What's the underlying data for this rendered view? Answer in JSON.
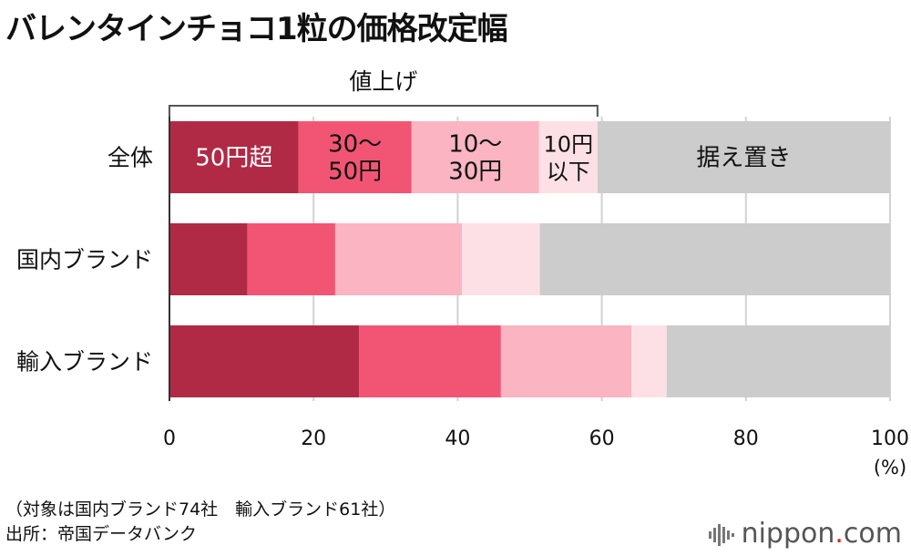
{
  "title": "バレンタインチョコ1粒の価格改定幅",
  "chart_data": {
    "type": "bar",
    "orientation": "horizontal",
    "stacked": true,
    "categories": [
      "全体",
      "国内ブランド",
      "輸入ブランド"
    ],
    "series": [
      {
        "name": "50円超",
        "color": "#b02a45",
        "values": [
          17.9,
          10.8,
          26.3
        ]
      },
      {
        "name": "30〜50円",
        "color": "#f25574",
        "values": [
          15.7,
          12.2,
          19.7
        ]
      },
      {
        "name": "10〜30円",
        "color": "#fbb4c2",
        "values": [
          17.7,
          17.6,
          18.1
        ]
      },
      {
        "name": "10円以下",
        "color": "#fde0e6",
        "values": [
          8.1,
          10.8,
          4.9
        ]
      },
      {
        "name": "据え置き",
        "color": "#cccccc",
        "values": [
          40.6,
          48.6,
          31.0
        ]
      }
    ],
    "segment_labels": [
      "50円超",
      "30〜\n50円",
      "10〜\n30円",
      "10円\n以下",
      "据え置き"
    ],
    "bracket_label": "値上げ",
    "bracket_range": [
      0,
      59.4
    ],
    "xlim": [
      0,
      100
    ],
    "xticks": [
      0,
      20,
      40,
      60,
      80,
      100
    ],
    "xunit": "(%)",
    "grid": true
  },
  "notes": {
    "line1": "（対象は国内ブランド74社　輸入ブランド61社）",
    "line2": "出所：帝国データバンク"
  },
  "brand": {
    "name": "nippon",
    "dot": ".",
    "tld": "com"
  }
}
